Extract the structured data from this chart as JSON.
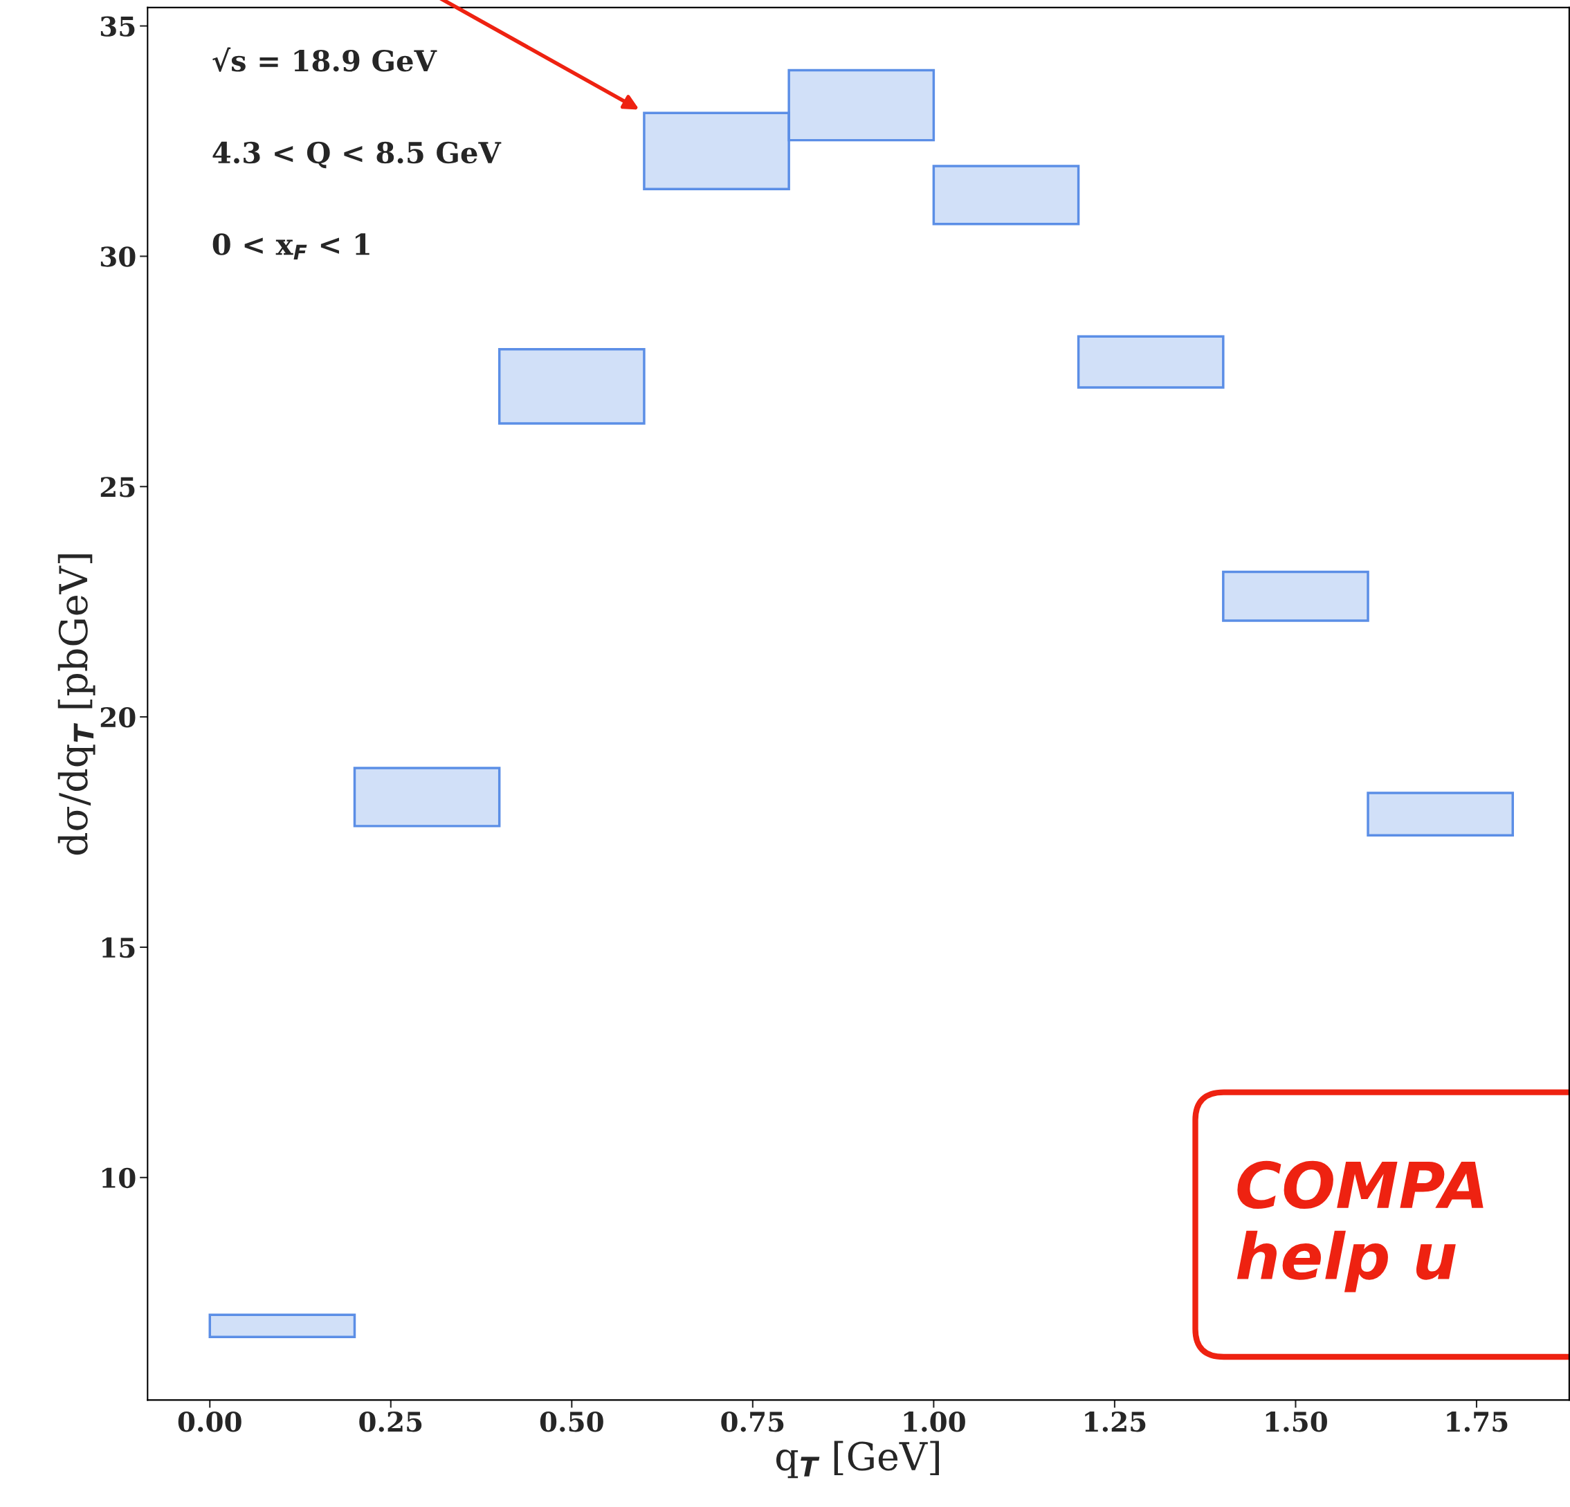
{
  "chart_data": {
    "type": "bar",
    "x": [
      0.1,
      0.3,
      0.5,
      0.7,
      0.9,
      1.1,
      1.3,
      1.5,
      1.7
    ],
    "base": [
      6.54,
      17.63,
      26.37,
      31.46,
      32.52,
      30.7,
      27.15,
      22.09,
      17.43
    ],
    "values": [
      0.48,
      1.26,
      1.61,
      1.65,
      1.52,
      1.26,
      1.11,
      1.06,
      0.92
    ],
    "color": "#5b8ee6",
    "xlabel": "q$_{T}$ [GeV]",
    "ylabel": "dσ/dq$_{T}$ [pbGeV]",
    "xlim": [
      -0.086,
      1.878
    ],
    "ylim": [
      5.17,
      35.4
    ],
    "xticks": [
      {
        "value": 0,
        "label": "0.00"
      },
      {
        "value": 0.25,
        "label": "0.25"
      },
      {
        "value": 0.5,
        "label": "0.50"
      },
      {
        "value": 0.75,
        "label": "0.75"
      },
      {
        "value": 1,
        "label": "1.00"
      },
      {
        "value": 1.25,
        "label": "1.25"
      },
      {
        "value": 1.5,
        "label": "1.50"
      },
      {
        "value": 1.75,
        "label": "1.75"
      }
    ],
    "yticks": [
      10,
      15,
      20,
      25,
      30,
      35
    ],
    "annotations": [
      "√s = 18.9 GeV",
      "4.3 < Q < 8.5 GeV",
      "0 < x$_{F}$ < 1",
      {
        "text": "COMPA\nhelp u"
      }
    ]
  }
}
